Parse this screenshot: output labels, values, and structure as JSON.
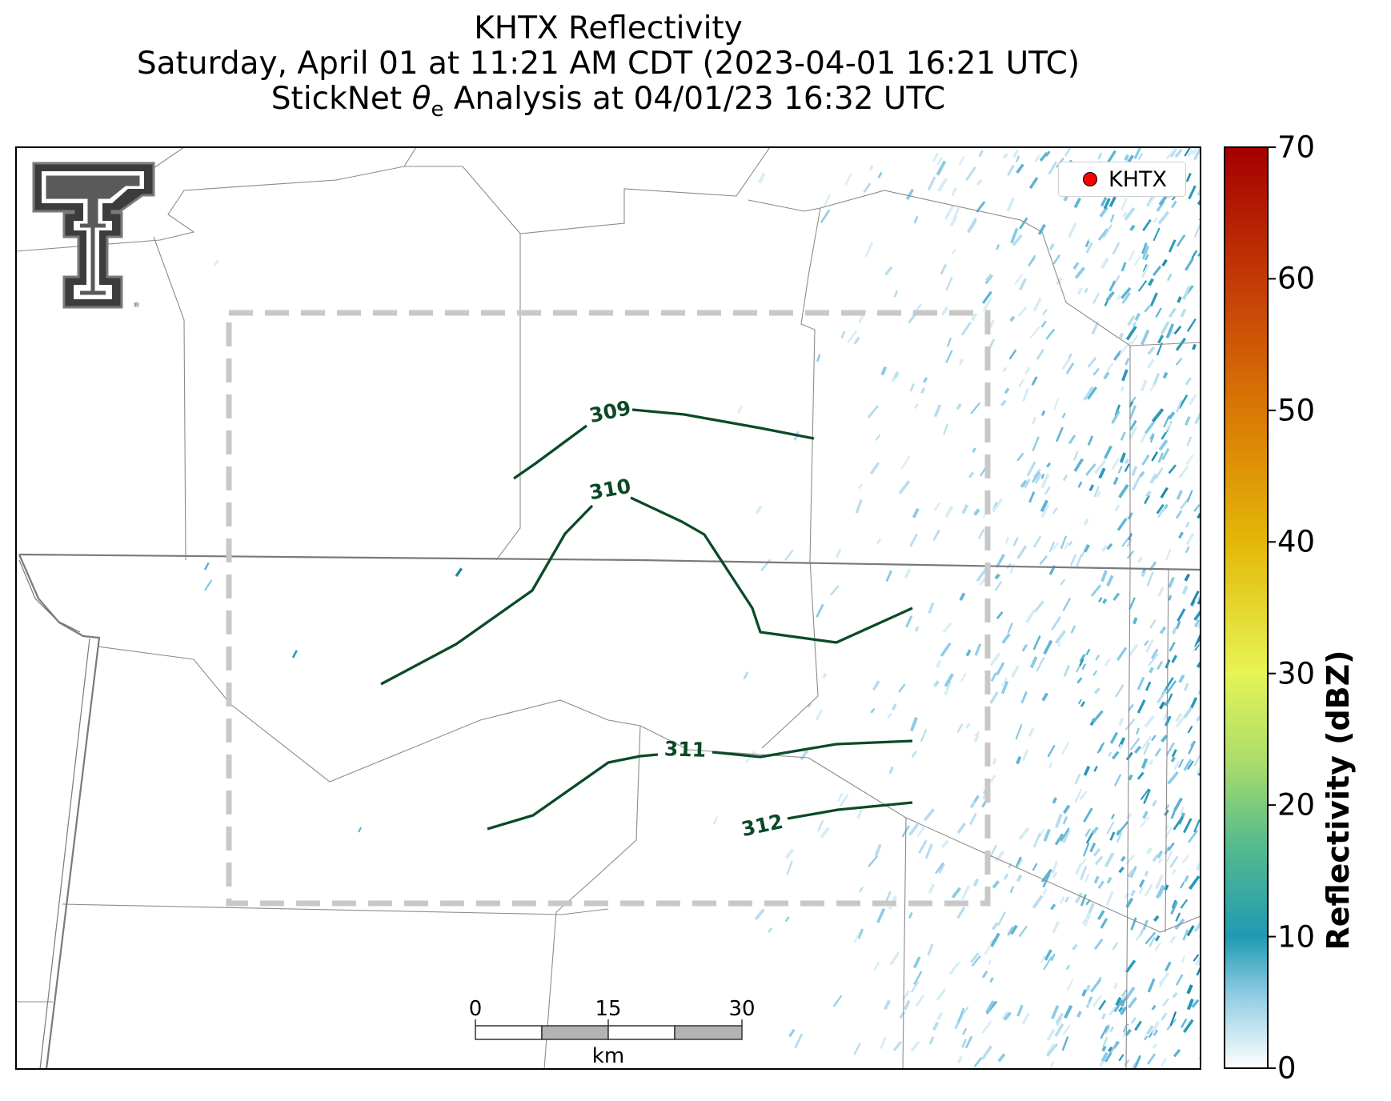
{
  "title": {
    "line1": "KHTX Reflectivity",
    "line2": "Saturday, April 01 at 11:21 AM CDT (2023-04-01 16:21 UTC)",
    "line3_pre": "StickNet ",
    "line3_sym": "θ",
    "line3_sub": "e",
    "line3_post": " Analysis at 04/01/23 16:32 UTC"
  },
  "legend": {
    "label": "KHTX",
    "marker_color": "#ff0000"
  },
  "colorbar": {
    "label": "Reflectivity (dBZ)",
    "ticks": [
      "0",
      "10",
      "20",
      "30",
      "40",
      "50",
      "60",
      "70"
    ],
    "min": 0,
    "max": 70
  },
  "contours": [
    {
      "value": 309,
      "label": "309"
    },
    {
      "value": 310,
      "label": "310"
    },
    {
      "value": 311,
      "label": "311"
    },
    {
      "value": 312,
      "label": "312"
    }
  ],
  "scalebar": {
    "ticks": [
      "0",
      "15",
      "30"
    ],
    "unit": "km"
  },
  "logo": {
    "text": "T"
  },
  "colors": {
    "contour": "#0b4a26",
    "box": "#c8c8c8",
    "radar": "#2a9ab8"
  }
}
